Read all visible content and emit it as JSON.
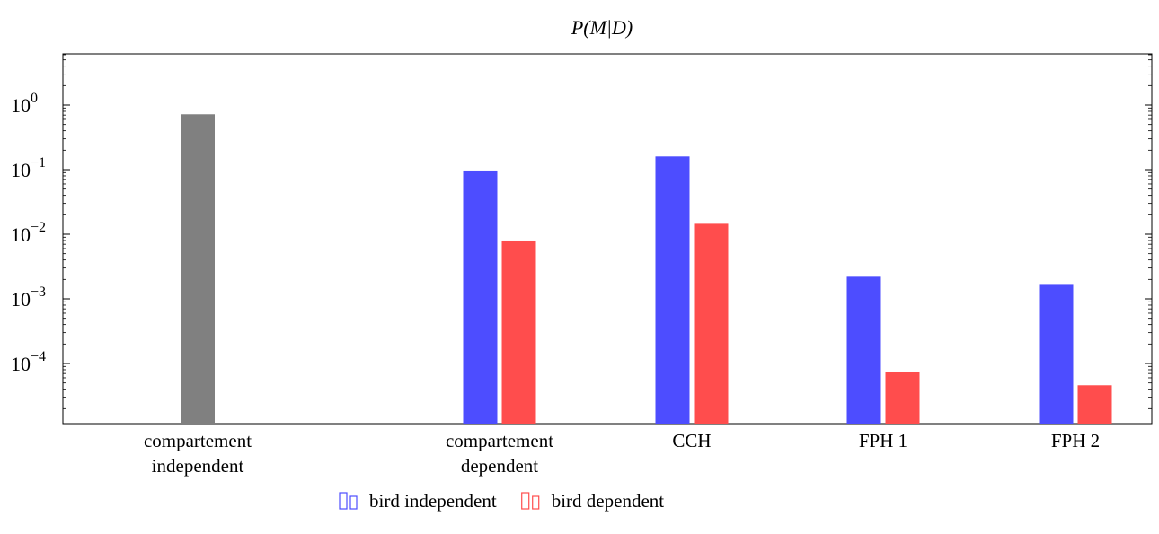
{
  "chart_data": {
    "type": "bar",
    "title": "P(M|D)",
    "yscale": "log",
    "ylim": [
      1.5e-05,
      5
    ],
    "yticks": [
      {
        "value": 1,
        "exp": "0"
      },
      {
        "value": 0.1,
        "exp": "−1"
      },
      {
        "value": 0.01,
        "exp": "−2"
      },
      {
        "value": 0.001,
        "exp": "−3"
      },
      {
        "value": 0.0001,
        "exp": "−4"
      }
    ],
    "categories": [
      {
        "lines": [
          "compartement",
          "independent"
        ]
      },
      {
        "lines": [
          "compartement",
          "dependent"
        ]
      },
      {
        "lines": [
          "CCH"
        ]
      },
      {
        "lines": [
          "FPH 1"
        ]
      },
      {
        "lines": [
          "FPH 2"
        ]
      }
    ],
    "single": {
      "category_index": 0,
      "value": 0.72,
      "color": "#808080"
    },
    "series": [
      {
        "name": "bird independent",
        "color": "#4d4dff",
        "values": [
          null,
          0.097,
          0.16,
          0.0022,
          0.0017
        ]
      },
      {
        "name": "bird dependent",
        "color": "#ff4d4d",
        "values": [
          null,
          0.008,
          0.0145,
          7.5e-05,
          4.6e-05
        ]
      }
    ],
    "legend": {
      "placement": "bottom"
    }
  }
}
